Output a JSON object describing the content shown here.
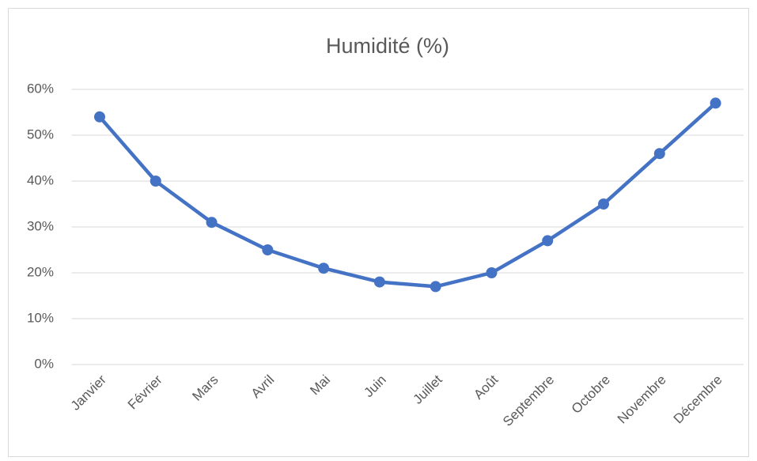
{
  "chart_data": {
    "type": "line",
    "title": "Humidité (%)",
    "categories": [
      "Janvier",
      "Février",
      "Mars",
      "Avril",
      "Mai",
      "Juin",
      "Juillet",
      "Août",
      "Septembre",
      "Octobre",
      "Novembre",
      "Décembre"
    ],
    "values": [
      54,
      40,
      31,
      25,
      21,
      18,
      17,
      20,
      27,
      35,
      46,
      57
    ],
    "color": "#4472c4",
    "ylim": [
      0,
      60
    ],
    "yticks": [
      {
        "value": 0,
        "label": "0%"
      },
      {
        "value": 10,
        "label": "10%"
      },
      {
        "value": 20,
        "label": "20%"
      },
      {
        "value": 30,
        "label": "30%"
      },
      {
        "value": 40,
        "label": "40%"
      },
      {
        "value": 50,
        "label": "50%"
      },
      {
        "value": 60,
        "label": "60%"
      }
    ],
    "grid": true
  }
}
